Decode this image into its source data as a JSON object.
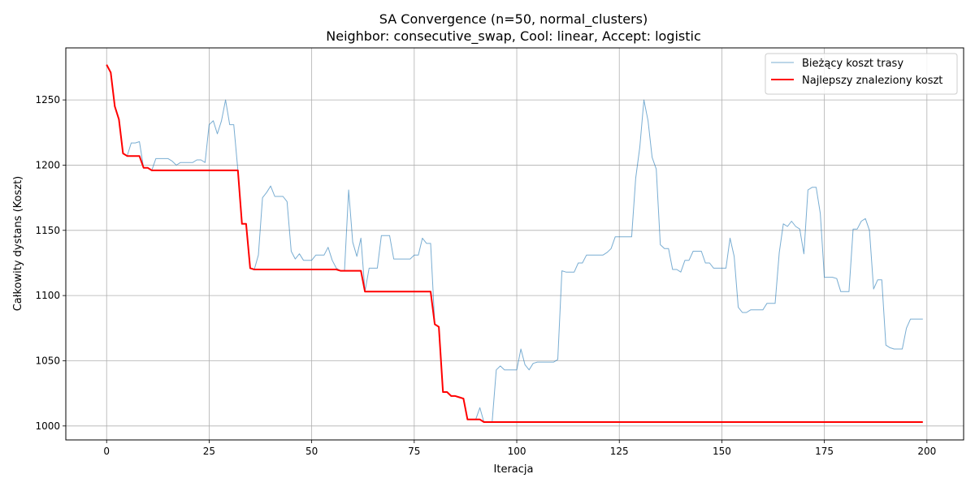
{
  "chart_data": {
    "type": "line",
    "title": "SA Convergence (n=50, normal_clusters)",
    "subtitle": "Neighbor: consecutive_swap, Cool: linear, Accept: logistic",
    "xlabel": "Iteracja",
    "ylabel": "Całkowity dystans (Koszt)",
    "xlim": [
      -9.95,
      208.95
    ],
    "ylim": [
      989.3,
      1289.9
    ],
    "xticks": [
      0,
      25,
      50,
      75,
      100,
      125,
      150,
      175,
      200
    ],
    "yticks": [
      1000,
      1050,
      1100,
      1150,
      1200,
      1250
    ],
    "grid": true,
    "legend_position": "top-right",
    "series": [
      {
        "name": "Bieżący koszt trasy",
        "color": "#1f77b4",
        "x": [
          0,
          1,
          2,
          3,
          4,
          5,
          6,
          7,
          8,
          9,
          10,
          11,
          12,
          13,
          14,
          15,
          16,
          17,
          18,
          19,
          20,
          21,
          22,
          23,
          24,
          25,
          26,
          27,
          28,
          29,
          30,
          31,
          32,
          33,
          34,
          35,
          36,
          37,
          38,
          39,
          40,
          41,
          42,
          43,
          44,
          45,
          46,
          47,
          48,
          49,
          50,
          51,
          52,
          53,
          54,
          55,
          56,
          57,
          58,
          59,
          60,
          61,
          62,
          63,
          64,
          65,
          66,
          67,
          68,
          69,
          70,
          71,
          72,
          73,
          74,
          75,
          76,
          77,
          78,
          79,
          80,
          81,
          82,
          83,
          84,
          85,
          86,
          87,
          88,
          89,
          90,
          91,
          92,
          93,
          94,
          95,
          96,
          97,
          98,
          99,
          100,
          101,
          102,
          103,
          104,
          105,
          106,
          107,
          108,
          109,
          110,
          111,
          112,
          113,
          114,
          115,
          116,
          117,
          118,
          119,
          120,
          121,
          122,
          123,
          124,
          125,
          126,
          127,
          128,
          129,
          130,
          131,
          132,
          133,
          134,
          135,
          136,
          137,
          138,
          139,
          140,
          141,
          142,
          143,
          144,
          145,
          146,
          147,
          148,
          149,
          150,
          151,
          152,
          153,
          154,
          155,
          156,
          157,
          158,
          159,
          160,
          161,
          162,
          163,
          164,
          165,
          166,
          167,
          168,
          169,
          170,
          171,
          172,
          173,
          174,
          175,
          176,
          177,
          178,
          179,
          180,
          181,
          182,
          183,
          184,
          185,
          186,
          187,
          188,
          189,
          190,
          191,
          192,
          193,
          194,
          195,
          196,
          197,
          198,
          199
        ],
        "y": [
          1277,
          1271,
          1245,
          1235,
          1209,
          1207,
          1217,
          1217,
          1218,
          1198,
          1198,
          1196,
          1205,
          1205,
          1205,
          1205,
          1203,
          1200,
          1202,
          1202,
          1202,
          1202,
          1204,
          1204,
          1202,
          1231,
          1234,
          1224,
          1234,
          1250,
          1231,
          1231,
          1196,
          1155,
          1155,
          1121,
          1120,
          1131,
          1175,
          1179,
          1184,
          1176,
          1176,
          1176,
          1172,
          1134,
          1128,
          1132,
          1127,
          1127,
          1127,
          1131,
          1131,
          1131,
          1137,
          1127,
          1121,
          1119,
          1119,
          1181,
          1141,
          1130,
          1144,
          1103,
          1121,
          1121,
          1121,
          1146,
          1146,
          1146,
          1128,
          1128,
          1128,
          1128,
          1128,
          1131,
          1131,
          1144,
          1140,
          1140,
          1078,
          1076,
          1026,
          1026,
          1023,
          1023,
          1022,
          1021,
          1005,
          1005,
          1005,
          1014,
          1003,
          1003,
          1003,
          1043,
          1046,
          1043,
          1043,
          1043,
          1043,
          1059,
          1047,
          1043,
          1048,
          1049,
          1049,
          1049,
          1049,
          1049,
          1051,
          1119,
          1118,
          1118,
          1118,
          1125,
          1125,
          1131,
          1131,
          1131,
          1131,
          1131,
          1133,
          1136,
          1145,
          1145,
          1145,
          1145,
          1145,
          1190,
          1214,
          1250,
          1234,
          1206,
          1197,
          1139,
          1136,
          1136,
          1120,
          1120,
          1118,
          1127,
          1127,
          1134,
          1134,
          1134,
          1125,
          1125,
          1121,
          1121,
          1121,
          1121,
          1144,
          1130,
          1091,
          1087,
          1087,
          1089,
          1089,
          1089,
          1089,
          1094,
          1094,
          1094,
          1133,
          1155,
          1153,
          1157,
          1153,
          1151,
          1132,
          1181,
          1183,
          1183,
          1163,
          1114,
          1114,
          1114,
          1113,
          1103,
          1103,
          1103,
          1151,
          1151,
          1157,
          1159,
          1150,
          1105,
          1112,
          1112,
          1062,
          1060,
          1059,
          1059,
          1059,
          1075,
          1082,
          1082,
          1082,
          1082
        ]
      },
      {
        "name": "Najlepszy znaleziony koszt",
        "color": "#ff0000",
        "x": [
          0,
          1,
          2,
          3,
          4,
          5,
          6,
          7,
          8,
          9,
          10,
          11,
          32,
          33,
          34,
          35,
          36,
          56,
          57,
          62,
          63,
          79,
          80,
          81,
          82,
          83,
          84,
          85,
          86,
          87,
          88,
          91,
          92,
          199
        ],
        "y": [
          1277,
          1271,
          1245,
          1235,
          1209,
          1207,
          1207,
          1207,
          1207,
          1198,
          1198,
          1196,
          1196,
          1155,
          1155,
          1121,
          1120,
          1120,
          1119,
          1119,
          1103,
          1103,
          1078,
          1076,
          1026,
          1026,
          1023,
          1023,
          1022,
          1021,
          1005,
          1005,
          1003,
          1003
        ]
      }
    ]
  }
}
